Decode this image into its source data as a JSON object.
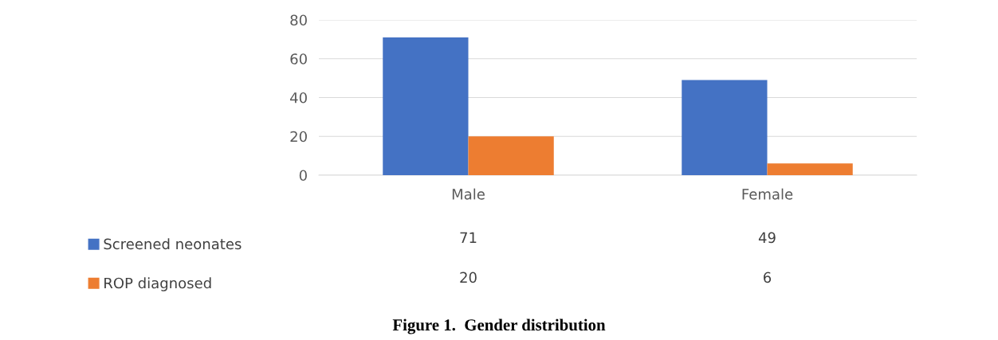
{
  "chart_data": {
    "type": "bar",
    "categories": [
      "Male",
      "Female"
    ],
    "series": [
      {
        "name": "Screened neonates",
        "color": "#4472c4",
        "values": [
          71,
          49
        ]
      },
      {
        "name": "ROP diagnosed",
        "color": "#ed7d31",
        "values": [
          20,
          6
        ]
      }
    ],
    "ylim": [
      0,
      80
    ],
    "yticks": [
      0,
      20,
      40,
      60,
      80
    ],
    "grid": "y",
    "legend": "bottom left",
    "data_labels": true,
    "annotations": [
      "Figure 1.  Gender distribution"
    ]
  }
}
